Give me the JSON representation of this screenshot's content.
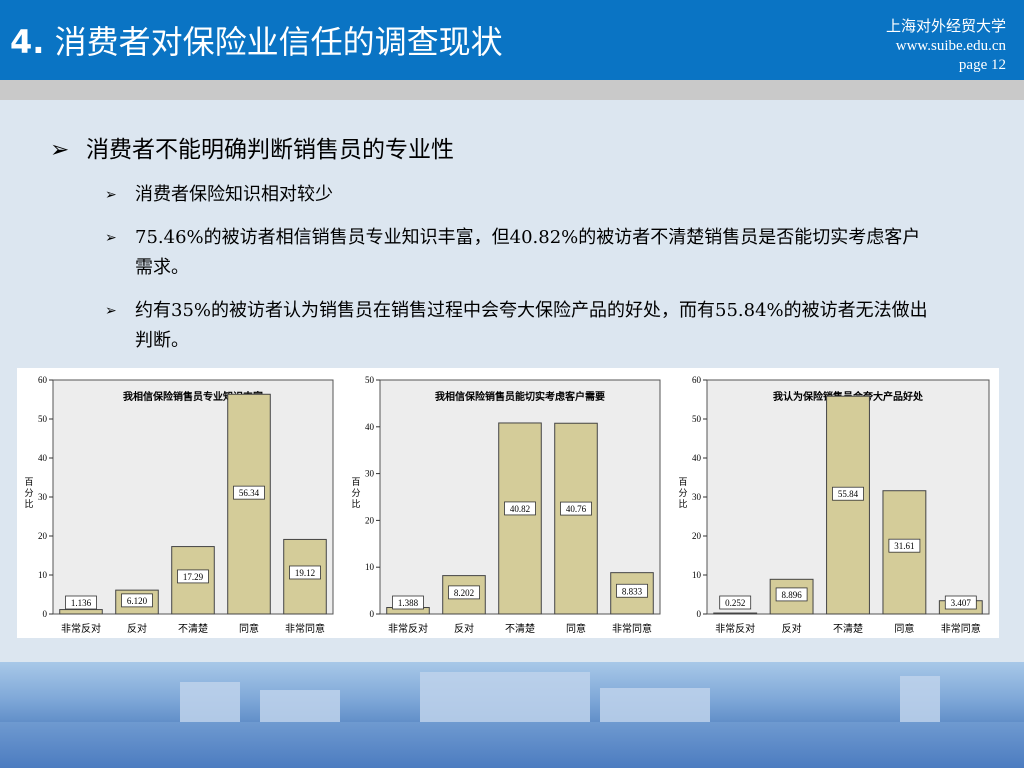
{
  "header": {
    "title_num": "4.",
    "title_text": "消费者对保险业信任的调查现状",
    "university": "上海对外经贸大学",
    "website": "www.suibe.edu.cn",
    "page": "page 12"
  },
  "bullets": {
    "main": "消费者不能明确判断销售员的专业性",
    "sub": [
      "消费者保险知识相对较少",
      "75.46%的被访者相信销售员专业知识丰富，但40.82%的被访者不清楚销售员是否能切实考虑客户需求。",
      "约有35%的被访者认为销售员在销售过程中会夸大保险产品的好处，而有55.84%的被访者无法做出判断。"
    ]
  },
  "colors": {
    "header_bg": "#0a74c4",
    "bar_fill": "#d4cc99",
    "plot_bg": "#ededed"
  },
  "chart_data": [
    {
      "type": "bar",
      "title": "我相信保险销售员专业知识丰富",
      "ylabel": "百分比",
      "categories": [
        "非常反对",
        "反对",
        "不清楚",
        "同意",
        "非常同意"
      ],
      "values": [
        1.136,
        6.12,
        17.29,
        56.34,
        19.12
      ],
      "labels": [
        "1.136",
        "6.120",
        "17.29",
        "56.34",
        "19.12"
      ],
      "ylim": [
        0,
        60
      ],
      "yticks": [
        "0",
        "10",
        "20",
        "30",
        "40",
        "50",
        "60"
      ]
    },
    {
      "type": "bar",
      "title": "我相信保险销售员能切实考虑客户需要",
      "ylabel": "百分比",
      "categories": [
        "非常反对",
        "反对",
        "不清楚",
        "同意",
        "非常同意"
      ],
      "values": [
        1.388,
        8.202,
        40.82,
        40.76,
        8.833
      ],
      "labels": [
        "1.388",
        "8.202",
        "40.82",
        "40.76",
        "8.833"
      ],
      "ylim": [
        0,
        50
      ],
      "yticks": [
        "0",
        "10",
        "20",
        "30",
        "40",
        "50"
      ]
    },
    {
      "type": "bar",
      "title": "我认为保险销售员会夸大产品好处",
      "ylabel": "百分比",
      "categories": [
        "非常反对",
        "反对",
        "不清楚",
        "同意",
        "非常同意"
      ],
      "values": [
        0.252,
        8.896,
        55.84,
        31.61,
        3.407
      ],
      "labels": [
        "0.252",
        "8.896",
        "55.84",
        "31.61",
        "3.407"
      ],
      "ylim": [
        0,
        60
      ],
      "yticks": [
        "0",
        "10",
        "20",
        "30",
        "40",
        "50",
        "60"
      ]
    }
  ]
}
